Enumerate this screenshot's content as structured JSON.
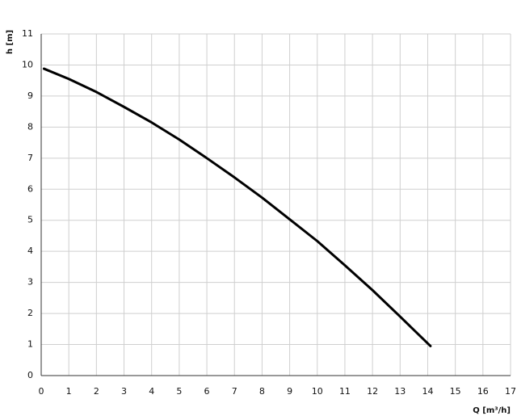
{
  "chart_data": {
    "type": "line",
    "ylabel": "h [m]",
    "xlabel": "Q [m³/h]",
    "x": [
      0.1,
      1,
      2,
      3,
      4,
      5,
      6,
      7,
      8,
      9,
      10,
      11,
      12,
      13,
      14.1
    ],
    "series": [
      {
        "color": "#000000",
        "values": [
          9.88,
          9.55,
          9.13,
          8.65,
          8.15,
          7.6,
          7.0,
          6.38,
          5.73,
          5.03,
          4.33,
          3.55,
          2.75,
          1.9,
          0.95
        ]
      }
    ],
    "xlim": [
      0,
      17
    ],
    "xticks": [
      0,
      1,
      2,
      3,
      4,
      5,
      6,
      7,
      8,
      9,
      10,
      11,
      12,
      13,
      14,
      15,
      16,
      17
    ],
    "ylim": [
      0,
      11
    ],
    "yticks": [
      0,
      1,
      2,
      3,
      4,
      5,
      6,
      7,
      8,
      9,
      10,
      11
    ],
    "grid": true
  }
}
